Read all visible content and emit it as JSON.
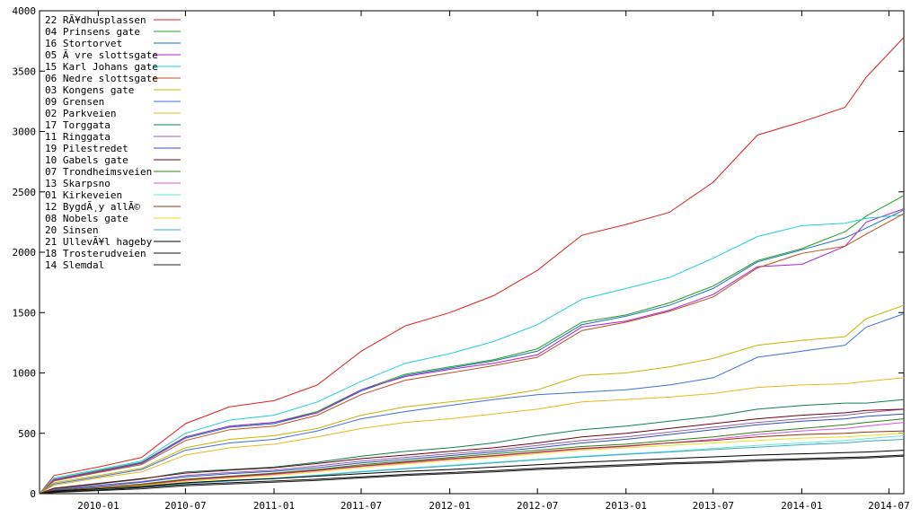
{
  "chart_data": {
    "type": "line",
    "title": "",
    "xlabel": "",
    "ylabel": "",
    "xlim": [
      "2009-09-01",
      "2014-08-01"
    ],
    "ylim": [
      0,
      4000
    ],
    "grid": false,
    "legend_position": "top-left",
    "x_ticks": [
      "2010-01",
      "2010-07",
      "2011-01",
      "2011-07",
      "2012-01",
      "2012-07",
      "2013-01",
      "2013-07",
      "2014-01",
      "2014-07"
    ],
    "y_ticks": [
      0,
      500,
      1000,
      1500,
      2000,
      2500,
      3000,
      3500,
      4000
    ],
    "x": [
      "2009-09-01",
      "2009-10-01",
      "2010-01-01",
      "2010-04-01",
      "2010-07-01",
      "2010-10-01",
      "2011-01-01",
      "2011-04-01",
      "2011-07-01",
      "2011-10-01",
      "2012-01-01",
      "2012-04-01",
      "2012-07-01",
      "2012-10-01",
      "2013-01-01",
      "2013-04-01",
      "2013-07-01",
      "2013-10-01",
      "2014-01-01",
      "2014-04-01",
      "2014-05-15",
      "2014-08-01"
    ],
    "series": [
      {
        "name": "22 RÃ¥dhusplassen",
        "color": "#e0201e",
        "values": [
          0,
          150,
          220,
          300,
          580,
          720,
          770,
          900,
          1180,
          1390,
          1500,
          1640,
          1850,
          2140,
          2230,
          2330,
          2580,
          2970,
          3080,
          3200,
          3450,
          3780
        ]
      },
      {
        "name": "04 Prinsens gate",
        "color": "#20a020",
        "values": [
          0,
          120,
          190,
          260,
          470,
          560,
          590,
          680,
          860,
          990,
          1050,
          1110,
          1200,
          1420,
          1480,
          1580,
          1720,
          1930,
          2030,
          2170,
          2300,
          2470
        ]
      },
      {
        "name": "16 Stortorvet",
        "color": "#1a70b8",
        "values": [
          0,
          110,
          180,
          250,
          460,
          550,
          580,
          670,
          850,
          980,
          1040,
          1100,
          1180,
          1400,
          1470,
          1560,
          1700,
          1920,
          2020,
          2120,
          2200,
          2350
        ]
      },
      {
        "name": "05 Ã vre slottsgate",
        "color": "#b020d0",
        "values": [
          0,
          115,
          185,
          255,
          470,
          560,
          590,
          670,
          860,
          970,
          1030,
          1080,
          1150,
          1380,
          1430,
          1520,
          1650,
          1880,
          1900,
          2050,
          2250,
          2360
        ]
      },
      {
        "name": "15 Karl Johans gate",
        "color": "#20d0d8",
        "values": [
          0,
          130,
          200,
          270,
          500,
          610,
          650,
          760,
          930,
          1080,
          1160,
          1260,
          1400,
          1610,
          1700,
          1790,
          1950,
          2130,
          2220,
          2240,
          2280,
          2310
        ]
      },
      {
        "name": "06 Nedre slottsgate",
        "color": "#c05020",
        "values": [
          0,
          105,
          175,
          240,
          440,
          530,
          560,
          650,
          820,
          940,
          1000,
          1060,
          1130,
          1350,
          1420,
          1510,
          1630,
          1870,
          1990,
          2050,
          2150,
          2320
        ]
      },
      {
        "name": "03 Kongens gate",
        "color": "#c8b400",
        "values": [
          0,
          90,
          150,
          210,
          380,
          450,
          480,
          540,
          650,
          720,
          760,
          800,
          860,
          980,
          1000,
          1050,
          1120,
          1230,
          1270,
          1300,
          1450,
          1560
        ]
      },
      {
        "name": "09 Grensen",
        "color": "#4070d8",
        "values": [
          0,
          80,
          140,
          200,
          360,
          420,
          450,
          520,
          620,
          680,
          730,
          780,
          820,
          840,
          860,
          900,
          960,
          1130,
          1180,
          1230,
          1380,
          1490
        ]
      },
      {
        "name": "02 Parkveien",
        "color": "#e8b820",
        "values": [
          0,
          70,
          130,
          180,
          320,
          380,
          410,
          470,
          540,
          590,
          620,
          660,
          700,
          760,
          780,
          800,
          830,
          880,
          900,
          910,
          930,
          960
        ]
      },
      {
        "name": "17 Torggata",
        "color": "#108050",
        "values": [
          0,
          40,
          80,
          120,
          180,
          200,
          220,
          260,
          310,
          350,
          380,
          420,
          480,
          530,
          560,
          600,
          640,
          700,
          730,
          750,
          750,
          780
        ]
      },
      {
        "name": "11 Ringgata",
        "color": "#9060b0",
        "values": [
          0,
          35,
          70,
          100,
          150,
          175,
          195,
          230,
          270,
          300,
          330,
          360,
          400,
          440,
          470,
          510,
          550,
          590,
          620,
          650,
          670,
          700
        ]
      },
      {
        "name": "19 Pilestredet",
        "color": "#3050c0",
        "values": [
          0,
          30,
          60,
          95,
          140,
          165,
          185,
          215,
          255,
          285,
          315,
          345,
          380,
          420,
          450,
          490,
          530,
          570,
          600,
          620,
          640,
          660
        ]
      },
      {
        "name": "10 Gabels gate",
        "color": "#700010",
        "values": [
          0,
          45,
          85,
          125,
          170,
          195,
          215,
          250,
          290,
          320,
          350,
          380,
          420,
          470,
          500,
          540,
          580,
          620,
          650,
          670,
          690,
          700
        ]
      },
      {
        "name": "07 Trondheimsveien",
        "color": "#308010",
        "values": [
          0,
          25,
          50,
          80,
          120,
          145,
          170,
          200,
          240,
          270,
          300,
          330,
          360,
          390,
          410,
          440,
          470,
          510,
          540,
          570,
          590,
          620
        ]
      },
      {
        "name": "13 Skarpsno",
        "color": "#e050e0",
        "values": [
          0,
          20,
          45,
          70,
          110,
          135,
          160,
          190,
          225,
          255,
          285,
          310,
          340,
          370,
          390,
          420,
          450,
          490,
          520,
          540,
          560,
          590
        ]
      },
      {
        "name": "01 Kirkeveien",
        "color": "#60e8d8",
        "values": [
          0,
          15,
          35,
          60,
          90,
          110,
          130,
          155,
          185,
          210,
          235,
          260,
          285,
          310,
          330,
          350,
          375,
          400,
          420,
          440,
          455,
          480
        ]
      },
      {
        "name": "12 BygdÃ¸y allÃ©",
        "color": "#a03010",
        "values": [
          0,
          22,
          48,
          75,
          115,
          140,
          165,
          195,
          230,
          260,
          290,
          315,
          345,
          375,
          395,
          420,
          440,
          470,
          490,
          500,
          510,
          520
        ]
      },
      {
        "name": "08 Nobels gate",
        "color": "#f0e020",
        "values": [
          0,
          18,
          42,
          68,
          100,
          125,
          150,
          180,
          215,
          245,
          275,
          300,
          330,
          360,
          380,
          400,
          420,
          440,
          460,
          470,
          480,
          500
        ]
      },
      {
        "name": "20 Sinsen",
        "color": "#40a8c8",
        "values": [
          0,
          12,
          30,
          55,
          85,
          105,
          125,
          150,
          180,
          205,
          230,
          255,
          280,
          305,
          325,
          345,
          365,
          385,
          405,
          420,
          435,
          450
        ]
      },
      {
        "name": "21 UllevÃ¥l hageby",
        "color": "#000000",
        "values": [
          0,
          20,
          40,
          60,
          90,
          110,
          125,
          145,
          165,
          185,
          200,
          220,
          240,
          260,
          275,
          290,
          305,
          320,
          330,
          340,
          345,
          360
        ]
      },
      {
        "name": "18 Trosterudveien",
        "color": "#101010",
        "values": [
          0,
          15,
          30,
          50,
          75,
          90,
          105,
          120,
          140,
          160,
          175,
          190,
          210,
          225,
          240,
          255,
          265,
          280,
          290,
          300,
          305,
          320
        ]
      },
      {
        "name": "14 Slemdal",
        "color": "#202020",
        "values": [
          0,
          10,
          25,
          40,
          65,
          80,
          95,
          110,
          130,
          150,
          165,
          180,
          200,
          215,
          230,
          245,
          255,
          270,
          280,
          290,
          295,
          310
        ]
      }
    ]
  }
}
